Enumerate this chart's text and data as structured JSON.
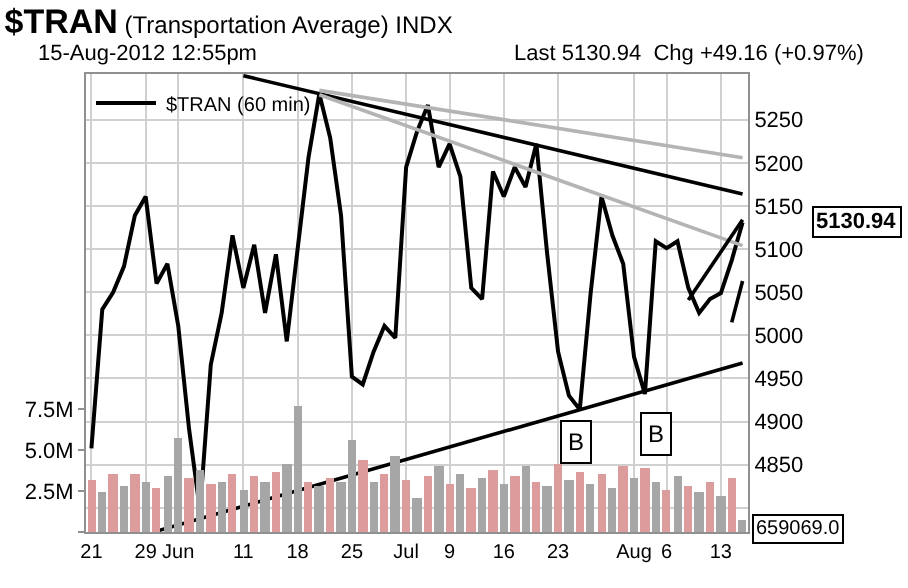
{
  "chart_data": {
    "type": "line",
    "title": "$TRAN (Transportation Average) INDX",
    "subtitle": "15-Aug-2012 12:55pm",
    "annotations": [
      "Last 5130.94  Chg +49.16 (+0.97%)",
      "659069.0",
      "B",
      "B",
      "5130.94"
    ],
    "categories": [
      "21",
      null,
      null,
      null,
      null,
      "29",
      null,
      null,
      "Jun",
      null,
      null,
      null,
      null,
      null,
      "11",
      null,
      null,
      null,
      null,
      "18",
      null,
      null,
      null,
      null,
      "25",
      null,
      null,
      null,
      null,
      "Jul",
      null,
      null,
      null,
      "9",
      null,
      null,
      null,
      null,
      "16",
      null,
      null,
      null,
      null,
      "23",
      null,
      null,
      null,
      null,
      null,
      null,
      "Aug",
      null,
      null,
      "6",
      null,
      null,
      null,
      null,
      "13",
      null,
      null
    ],
    "ylim": [
      4772,
      5303
    ],
    "yticks": [
      {
        "value": 4800,
        "label": null
      },
      4850,
      4900,
      4950,
      5000,
      5050,
      5100,
      5150,
      5200,
      5250
    ],
    "y2lim": [
      0,
      28
    ],
    "y2ticks": [
      {
        "value": 0,
        "label": null
      },
      {
        "value": 2.5,
        "label": "2.5M"
      },
      {
        "value": 5.0,
        "label": "5.0M"
      },
      {
        "value": 7.5,
        "label": "7.5M"
      }
    ],
    "grid": true,
    "legend": "top left",
    "series": [
      {
        "name": "$TRAN (60 min)",
        "color": "#000000",
        "values": [
          4869,
          5030,
          5050,
          5080,
          5139,
          5161,
          5060,
          5083,
          5011,
          4891,
          4797,
          4966,
          5026,
          5116,
          5055,
          5105,
          5026,
          5094,
          4993,
          5100,
          5206,
          5280,
          5229,
          5139,
          4952,
          4943,
          4981,
          5011,
          4997,
          5195,
          5236,
          5267,
          5195,
          5222,
          5184,
          5055,
          5042,
          5190,
          5161,
          5195,
          5172,
          5222,
          5094,
          4981,
          4930,
          4914,
          5049,
          5161,
          5116,
          5083,
          4975,
          4932,
          5109,
          5101,
          5109,
          5055,
          5026,
          5042,
          5049,
          5087,
          5131
        ]
      },
      {
        "type": "bar",
        "axis": "y2",
        "values": [
          3.2,
          2.5,
          3.5,
          2.8,
          3.6,
          3.0,
          2.7,
          3.4,
          5.8,
          3.3,
          3.8,
          2.9,
          3.1,
          3.5,
          2.6,
          3.4,
          3.0,
          3.7,
          4.2,
          7.7,
          3.1,
          2.8,
          3.3,
          3.0,
          5.6,
          4.4,
          3.0,
          3.6,
          4.6,
          3.2,
          2.1,
          3.4,
          4.0,
          2.9,
          3.5,
          2.7,
          3.3,
          3.8,
          2.9,
          3.4,
          4.0,
          3.1,
          2.8,
          4.1,
          3.2,
          3.7,
          2.9,
          3.5,
          2.7,
          4.0,
          3.3,
          3.9,
          3.1,
          2.6,
          3.4,
          2.8,
          2.5,
          3.0,
          2.2,
          3.3,
          0.7
        ],
        "colors": [
          "#dc9c9c",
          "#a6a6a6",
          "#dc9c9c",
          "#a6a6a6",
          "#dc9c9c",
          "#a6a6a6",
          "#dc9c9c",
          "#a6a6a6",
          "#a6a6a6",
          "#dc9c9c",
          "#a6a6a6",
          "#dc9c9c",
          "#a6a6a6",
          "#dc9c9c",
          "#a6a6a6",
          "#dc9c9c",
          "#a6a6a6",
          "#dc9c9c",
          "#a6a6a6",
          "#a6a6a6",
          "#dc9c9c",
          "#a6a6a6",
          "#dc9c9c",
          "#a6a6a6",
          "#a6a6a6",
          "#dc9c9c",
          "#a6a6a6",
          "#dc9c9c",
          "#a6a6a6",
          "#dc9c9c",
          "#a6a6a6",
          "#dc9c9c",
          "#a6a6a6",
          "#dc9c9c",
          "#a6a6a6",
          "#dc9c9c",
          "#a6a6a6",
          "#dc9c9c",
          "#a6a6a6",
          "#dc9c9c",
          "#a6a6a6",
          "#dc9c9c",
          "#a6a6a6",
          "#dc9c9c",
          "#a6a6a6",
          "#dc9c9c",
          "#a6a6a6",
          "#dc9c9c",
          "#a6a6a6",
          "#dc9c9c",
          "#a6a6a6",
          "#dc9c9c",
          "#a6a6a6",
          "#dc9c9c",
          "#a6a6a6",
          "#dc9c9c",
          "#a6a6a6",
          "#dc9c9c",
          "#a6a6a6",
          "#dc9c9c",
          "#a6a6a6"
        ]
      },
      {
        "color": "#000000",
        "values": [
          null,
          null,
          null,
          null,
          null,
          null,
          null,
          null,
          null,
          null,
          null,
          null,
          null,
          null,
          5301,
          null,
          null,
          null,
          null,
          null,
          null,
          null,
          null,
          null,
          null,
          null,
          null,
          null,
          null,
          null,
          null,
          null,
          null,
          null,
          null,
          null,
          null,
          null,
          null,
          null,
          null,
          null,
          null,
          null,
          null,
          null,
          null,
          null,
          null,
          null,
          null,
          null,
          null,
          null,
          null,
          null,
          null,
          null,
          null,
          null,
          5164
        ]
      },
      {
        "color": "#000000",
        "values": [
          null,
          null,
          null,
          null,
          null,
          null,
          4773,
          null,
          null,
          null,
          null,
          null,
          null,
          null,
          null,
          null,
          null,
          null,
          null,
          null,
          null,
          null,
          null,
          null,
          null,
          null,
          null,
          null,
          null,
          null,
          null,
          null,
          null,
          null,
          null,
          null,
          null,
          null,
          null,
          null,
          null,
          null,
          null,
          null,
          null,
          null,
          null,
          null,
          null,
          null,
          null,
          null,
          null,
          null,
          null,
          null,
          null,
          null,
          null,
          null,
          4968
        ]
      },
      {
        "color": "#b4b4b4",
        "values": [
          null,
          null,
          null,
          null,
          null,
          null,
          null,
          null,
          null,
          null,
          null,
          null,
          null,
          null,
          null,
          null,
          null,
          null,
          null,
          null,
          null,
          5284,
          null,
          null,
          null,
          null,
          null,
          null,
          null,
          null,
          null,
          null,
          null,
          null,
          null,
          null,
          null,
          null,
          null,
          null,
          null,
          null,
          null,
          null,
          null,
          null,
          null,
          null,
          null,
          null,
          null,
          null,
          null,
          null,
          null,
          null,
          null,
          null,
          null,
          null,
          5206
        ]
      },
      {
        "color": "#b4b4b4",
        "values": [
          null,
          null,
          null,
          null,
          null,
          null,
          null,
          null,
          null,
          null,
          null,
          null,
          null,
          null,
          null,
          null,
          null,
          null,
          null,
          null,
          null,
          5279,
          null,
          null,
          null,
          null,
          null,
          null,
          null,
          null,
          null,
          null,
          null,
          null,
          null,
          null,
          null,
          null,
          null,
          null,
          null,
          null,
          null,
          null,
          null,
          null,
          null,
          null,
          null,
          null,
          null,
          null,
          null,
          null,
          null,
          null,
          null,
          null,
          null,
          null,
          5104
        ]
      },
      {
        "color": "#000000",
        "values": [
          null,
          null,
          null,
          null,
          null,
          null,
          null,
          null,
          null,
          null,
          null,
          null,
          null,
          null,
          null,
          null,
          null,
          null,
          null,
          null,
          null,
          null,
          null,
          null,
          null,
          null,
          null,
          null,
          null,
          null,
          null,
          null,
          null,
          null,
          null,
          null,
          null,
          null,
          null,
          null,
          null,
          null,
          null,
          null,
          null,
          null,
          null,
          null,
          null,
          null,
          null,
          null,
          null,
          null,
          null,
          5041,
          null,
          null,
          null,
          null,
          5134
        ]
      },
      {
        "color": "#000000",
        "values": [
          null,
          null,
          null,
          null,
          null,
          null,
          null,
          null,
          null,
          null,
          null,
          null,
          null,
          null,
          null,
          null,
          null,
          null,
          null,
          null,
          null,
          null,
          null,
          null,
          null,
          null,
          null,
          null,
          null,
          null,
          null,
          null,
          null,
          null,
          null,
          null,
          null,
          null,
          null,
          null,
          null,
          null,
          null,
          null,
          null,
          null,
          null,
          null,
          null,
          null,
          null,
          null,
          null,
          null,
          null,
          null,
          null,
          null,
          null,
          5015,
          5063
        ]
      }
    ]
  }
}
